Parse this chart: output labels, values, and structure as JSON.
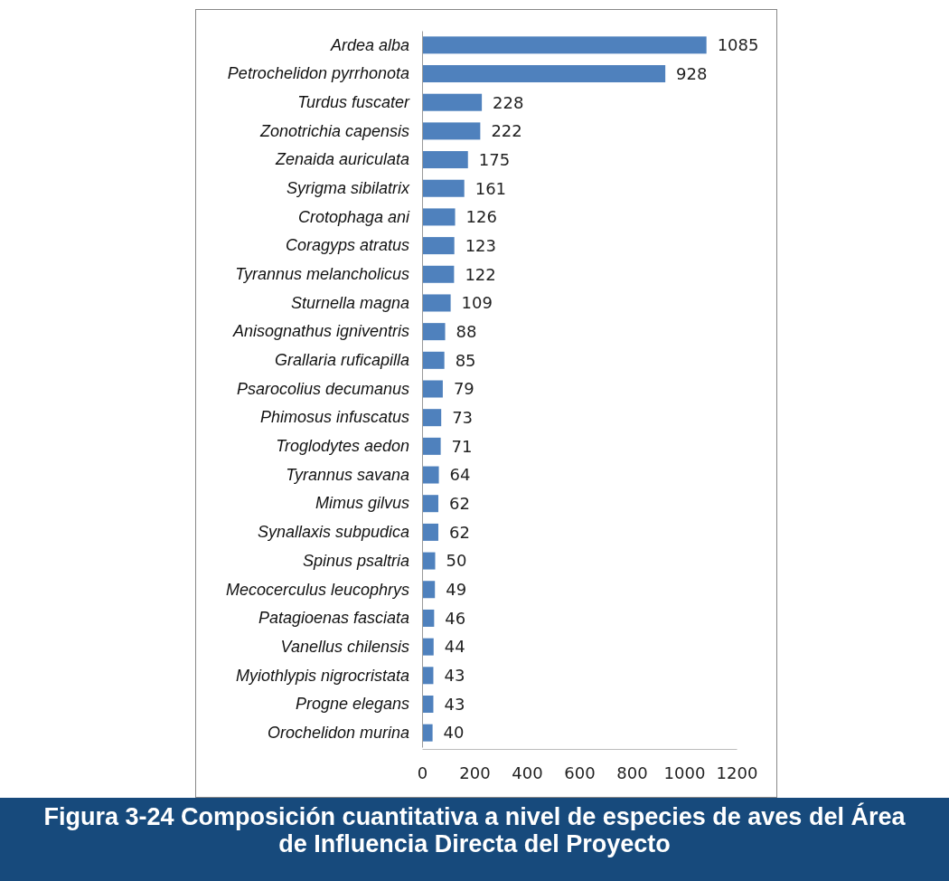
{
  "chart_data": {
    "type": "bar",
    "orientation": "horizontal",
    "title": "Figura 3-24 Composición cuantitativa a nivel de especies de aves del Área de Influencia Directa del Proyecto",
    "categories": [
      "Ardea alba",
      "Petrochelidon pyrrhonota",
      "Turdus fuscater",
      "Zonotrichia capensis",
      "Zenaida auriculata",
      "Syrigma sibilatrix",
      "Crotophaga ani",
      "Coragyps atratus",
      "Tyrannus melancholicus",
      "Sturnella magna",
      "Anisognathus igniventris",
      "Grallaria ruficapilla",
      "Psarocolius decumanus",
      "Phimosus infuscatus",
      "Troglodytes aedon",
      "Tyrannus savana",
      "Mimus gilvus",
      "Synallaxis subpudica",
      "Spinus psaltria",
      "Mecocerculus leucophrys",
      "Patagioenas fasciata",
      "Vanellus chilensis",
      "Myiothlypis nigrocristata",
      "Progne elegans",
      "Orochelidon murina"
    ],
    "values": [
      1085,
      928,
      228,
      222,
      175,
      161,
      126,
      123,
      122,
      109,
      88,
      85,
      79,
      73,
      71,
      64,
      62,
      62,
      50,
      49,
      46,
      44,
      43,
      43,
      40
    ],
    "color": "#4f81bd",
    "xlim": [
      0,
      1200
    ],
    "xticks": [
      0,
      200,
      400,
      600,
      800,
      1000,
      1200
    ],
    "data_labels": true,
    "grid": false
  }
}
